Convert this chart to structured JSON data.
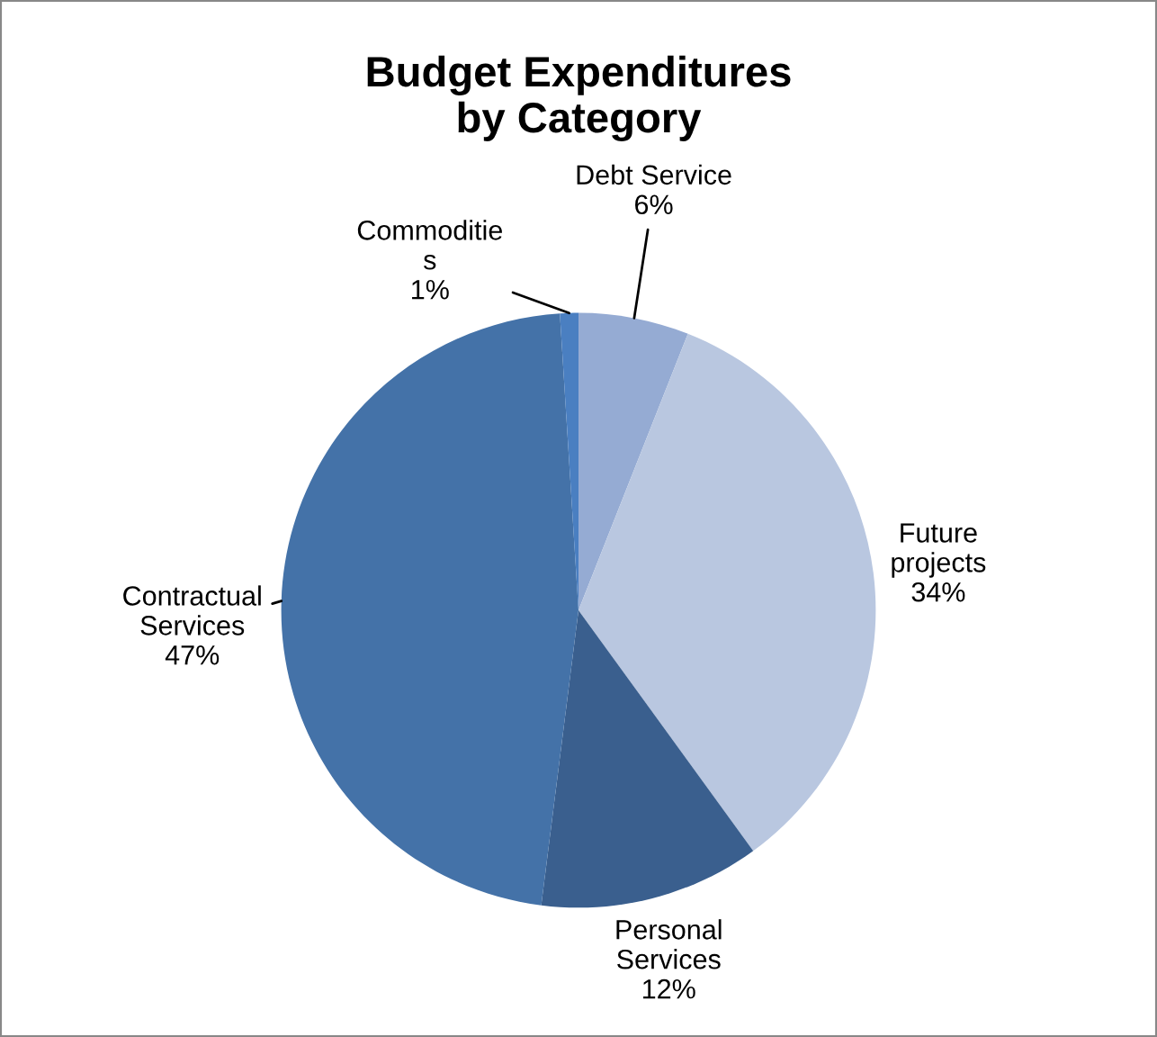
{
  "chart_data": {
    "type": "pie",
    "title": "Budget Expenditures\nby Category",
    "categories": [
      "Debt Service",
      "Future\nprojects",
      "Personal\nServices",
      "Contractual\nServices",
      "Commoditie\ns"
    ],
    "values": [
      6,
      34,
      12,
      47,
      1
    ],
    "colors": [
      "#95abd3",
      "#b9c7e0",
      "#3a5f8e",
      "#4472a8",
      "#4a7fc1"
    ],
    "value_labels": [
      "6%",
      "34%",
      "12%",
      "47%",
      "1%"
    ],
    "legend": false
  }
}
